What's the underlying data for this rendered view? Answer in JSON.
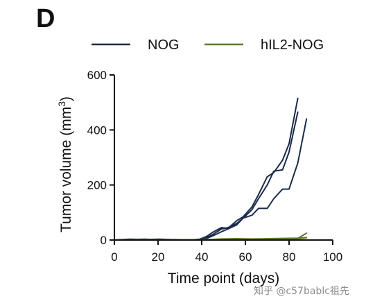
{
  "panel_label": "D",
  "watermark": "知乎 @c57bablc祖先",
  "colors": {
    "NOG": "#1b2a4a",
    "hIL2-NOG": "#5b7a2e",
    "axis": "#111111"
  },
  "chart_data": {
    "type": "line",
    "title": "",
    "xlabel": "Time point (days)",
    "ylabel": "Tumor volume (mm³)",
    "ylabel_base": "Tumor volume (mm",
    "ylabel_sup": "3",
    "ylabel_end": ")",
    "xlim": [
      0,
      100
    ],
    "ylim": [
      0,
      600
    ],
    "xticks": [
      0,
      20,
      40,
      60,
      80,
      100
    ],
    "yticks": [
      0,
      200,
      400,
      600
    ],
    "legend_position": "top",
    "grid": false,
    "legend": [
      {
        "name": "NOG",
        "color_key": "NOG"
      },
      {
        "name": "hIL2-NOG",
        "color_key": "hIL2-NOG"
      }
    ],
    "series": [
      {
        "group": "NOG",
        "x": [
          0,
          7,
          14,
          21,
          28,
          35,
          39,
          42,
          45,
          49,
          52,
          56,
          59,
          63,
          66,
          70,
          73,
          77,
          80,
          84
        ],
        "y": [
          0,
          3,
          2,
          3,
          1,
          0,
          3,
          12,
          28,
          45,
          42,
          70,
          85,
          120,
          165,
          230,
          245,
          290,
          350,
          515
        ]
      },
      {
        "group": "NOG",
        "x": [
          0,
          7,
          14,
          21,
          28,
          35,
          39,
          42,
          45,
          49,
          52,
          56,
          59,
          63,
          66,
          70,
          73,
          77,
          80,
          84
        ],
        "y": [
          0,
          2,
          3,
          1,
          0,
          1,
          2,
          8,
          20,
          40,
          45,
          60,
          80,
          110,
          150,
          200,
          250,
          255,
          320,
          465
        ]
      },
      {
        "group": "NOG",
        "x": [
          0,
          7,
          14,
          21,
          28,
          35,
          39,
          42,
          45,
          49,
          52,
          56,
          59,
          63,
          66,
          70,
          73,
          77,
          80,
          84,
          88
        ],
        "y": [
          0,
          1,
          2,
          2,
          1,
          0,
          1,
          5,
          15,
          30,
          40,
          55,
          80,
          90,
          115,
          115,
          150,
          185,
          185,
          280,
          440
        ]
      },
      {
        "group": "hIL2-NOG",
        "x": [
          0,
          7,
          14,
          21,
          28,
          35,
          42,
          49,
          56,
          63,
          70,
          77,
          84,
          88
        ],
        "y": [
          0,
          1,
          0,
          1,
          2,
          0,
          1,
          3,
          2,
          3,
          4,
          5,
          6,
          25
        ]
      },
      {
        "group": "hIL2-NOG",
        "x": [
          0,
          7,
          14,
          21,
          28,
          35,
          42,
          49,
          56,
          63,
          70,
          77,
          84,
          88
        ],
        "y": [
          0,
          0,
          1,
          0,
          1,
          1,
          2,
          2,
          3,
          2,
          3,
          4,
          5,
          8
        ]
      },
      {
        "group": "hIL2-NOG",
        "x": [
          0,
          7,
          14,
          21,
          28,
          35,
          42,
          49,
          56,
          63,
          70,
          77,
          84,
          88
        ],
        "y": [
          0,
          1,
          1,
          1,
          0,
          0,
          1,
          4,
          5,
          4,
          5,
          6,
          7,
          9
        ]
      }
    ]
  }
}
